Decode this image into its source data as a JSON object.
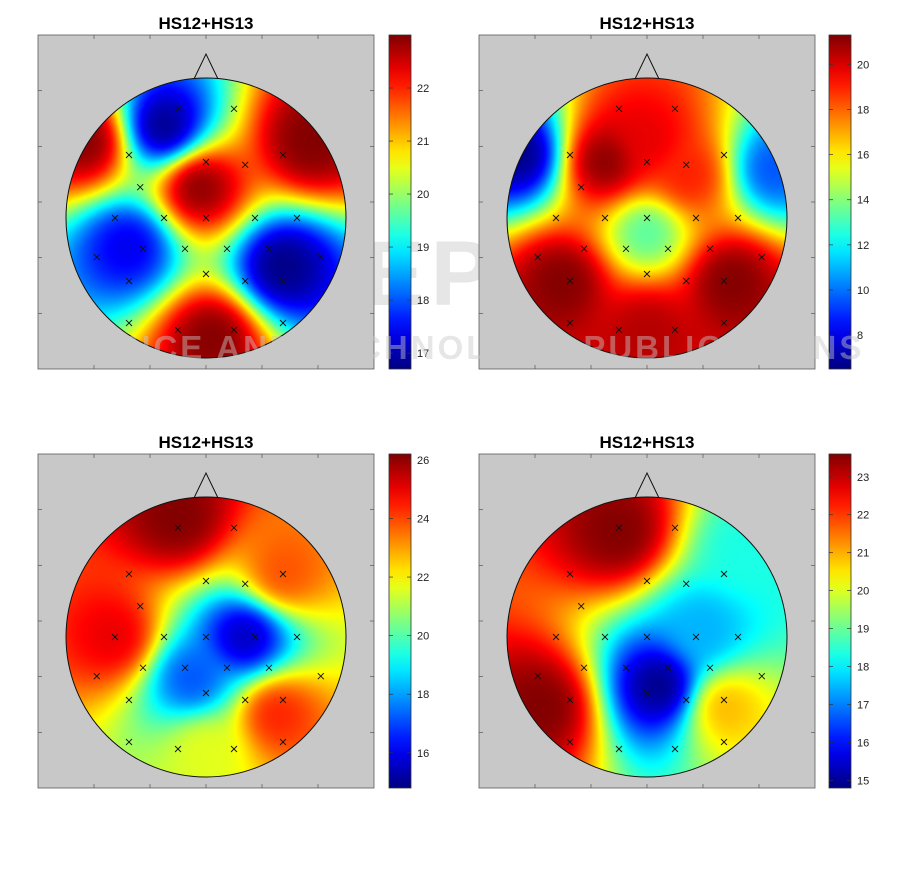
{
  "chart_data": [
    {
      "type": "heatmap",
      "title": "HS12+HS13",
      "colorbar": {
        "min": 16.7,
        "max": 23.0,
        "ticks": [
          17,
          18,
          19,
          20,
          21,
          22
        ]
      },
      "hotspots": [
        [
          -0.05,
          0.22,
          1
        ],
        [
          -0.85,
          0.55,
          1
        ],
        [
          0.75,
          0.55,
          1
        ],
        [
          0.05,
          -0.85,
          1
        ],
        [
          -0.3,
          0.65,
          0
        ],
        [
          0.55,
          -0.35,
          0
        ],
        [
          -0.55,
          -0.2,
          0.1
        ]
      ],
      "electrodes": [
        [
          -0.2,
          0.78
        ],
        [
          0.2,
          0.78
        ],
        [
          -0.55,
          0.45
        ],
        [
          -0.47,
          0.22
        ],
        [
          0.0,
          0.4
        ],
        [
          0.28,
          0.38
        ],
        [
          0.55,
          0.45
        ],
        [
          -0.65,
          0.0
        ],
        [
          -0.3,
          0.0
        ],
        [
          0.0,
          0.0
        ],
        [
          0.35,
          0.0
        ],
        [
          0.65,
          0.0
        ],
        [
          -0.45,
          -0.22
        ],
        [
          -0.15,
          -0.22
        ],
        [
          0.15,
          -0.22
        ],
        [
          0.45,
          -0.22
        ],
        [
          -0.78,
          -0.28
        ],
        [
          -0.55,
          -0.45
        ],
        [
          0.0,
          -0.4
        ],
        [
          0.28,
          -0.45
        ],
        [
          0.55,
          -0.45
        ],
        [
          0.82,
          -0.28
        ],
        [
          -0.55,
          -0.75
        ],
        [
          -0.2,
          -0.8
        ],
        [
          0.2,
          -0.8
        ],
        [
          0.55,
          -0.75
        ]
      ]
    },
    {
      "type": "heatmap",
      "title": "HS12+HS13",
      "colorbar": {
        "min": 6.5,
        "max": 21.3,
        "ticks": [
          8,
          10,
          12,
          14,
          16,
          18,
          20
        ]
      },
      "hotspots": [
        [
          0.0,
          0.55,
          0.9
        ],
        [
          -0.3,
          0.4,
          1
        ],
        [
          0.3,
          0.3,
          0.85
        ],
        [
          -0.6,
          -0.45,
          1
        ],
        [
          0.6,
          -0.45,
          1
        ],
        [
          0.0,
          -0.8,
          0.95
        ],
        [
          -0.9,
          0.45,
          0
        ],
        [
          0.9,
          0.35,
          0.2
        ],
        [
          0.0,
          -0.1,
          0.45
        ]
      ],
      "electrodes": [
        [
          -0.2,
          0.78
        ],
        [
          0.2,
          0.78
        ],
        [
          -0.55,
          0.45
        ],
        [
          -0.47,
          0.22
        ],
        [
          0.0,
          0.4
        ],
        [
          0.28,
          0.38
        ],
        [
          0.55,
          0.45
        ],
        [
          -0.65,
          0.0
        ],
        [
          -0.3,
          0.0
        ],
        [
          0.0,
          0.0
        ],
        [
          0.35,
          0.0
        ],
        [
          0.65,
          0.0
        ],
        [
          -0.45,
          -0.22
        ],
        [
          -0.15,
          -0.22
        ],
        [
          0.15,
          -0.22
        ],
        [
          0.45,
          -0.22
        ],
        [
          -0.78,
          -0.28
        ],
        [
          -0.55,
          -0.45
        ],
        [
          0.0,
          -0.4
        ],
        [
          0.28,
          -0.45
        ],
        [
          0.55,
          -0.45
        ],
        [
          0.82,
          -0.28
        ],
        [
          -0.55,
          -0.75
        ],
        [
          -0.2,
          -0.8
        ],
        [
          0.2,
          -0.8
        ],
        [
          0.55,
          -0.75
        ]
      ]
    },
    {
      "type": "heatmap",
      "title": "HS12+HS13",
      "colorbar": {
        "min": 14.8,
        "max": 26.2,
        "ticks": [
          16,
          18,
          20,
          22,
          24,
          26
        ]
      },
      "hotspots": [
        [
          -0.2,
          0.85,
          1
        ],
        [
          0.55,
          0.45,
          0.8
        ],
        [
          -0.65,
          0.0,
          0.9
        ],
        [
          0.5,
          -0.55,
          0.85
        ],
        [
          0.28,
          0.0,
          0.05
        ],
        [
          -0.1,
          -0.3,
          0.2
        ],
        [
          0.0,
          -0.8,
          0.6
        ]
      ],
      "electrodes": [
        [
          -0.2,
          0.78
        ],
        [
          0.2,
          0.78
        ],
        [
          -0.55,
          0.45
        ],
        [
          -0.47,
          0.22
        ],
        [
          0.0,
          0.4
        ],
        [
          0.28,
          0.38
        ],
        [
          0.55,
          0.45
        ],
        [
          -0.65,
          0.0
        ],
        [
          -0.3,
          0.0
        ],
        [
          0.0,
          0.0
        ],
        [
          0.35,
          0.0
        ],
        [
          0.65,
          0.0
        ],
        [
          -0.45,
          -0.22
        ],
        [
          -0.15,
          -0.22
        ],
        [
          0.15,
          -0.22
        ],
        [
          0.45,
          -0.22
        ],
        [
          -0.78,
          -0.28
        ],
        [
          -0.55,
          -0.45
        ],
        [
          0.0,
          -0.4
        ],
        [
          0.28,
          -0.45
        ],
        [
          0.55,
          -0.45
        ],
        [
          0.82,
          -0.28
        ],
        [
          -0.55,
          -0.75
        ],
        [
          -0.2,
          -0.8
        ],
        [
          0.2,
          -0.8
        ],
        [
          0.55,
          -0.75
        ]
      ]
    },
    {
      "type": "heatmap",
      "title": "HS12+HS13",
      "colorbar": {
        "min": 14.8,
        "max": 23.6,
        "ticks": [
          15,
          16,
          17,
          18,
          19,
          20,
          21,
          22,
          23
        ]
      },
      "hotspots": [
        [
          -0.2,
          0.75,
          1
        ],
        [
          -0.75,
          -0.5,
          1
        ],
        [
          0.55,
          -0.5,
          0.7
        ],
        [
          0.1,
          -0.35,
          0.0
        ],
        [
          0.4,
          0.05,
          0.3
        ],
        [
          0.7,
          0.6,
          0.4
        ]
      ],
      "electrodes": [
        [
          -0.2,
          0.78
        ],
        [
          0.2,
          0.78
        ],
        [
          -0.55,
          0.45
        ],
        [
          -0.47,
          0.22
        ],
        [
          0.0,
          0.4
        ],
        [
          0.28,
          0.38
        ],
        [
          0.55,
          0.45
        ],
        [
          -0.65,
          0.0
        ],
        [
          -0.3,
          0.0
        ],
        [
          0.0,
          0.0
        ],
        [
          0.35,
          0.0
        ],
        [
          0.65,
          0.0
        ],
        [
          -0.45,
          -0.22
        ],
        [
          -0.15,
          -0.22
        ],
        [
          0.15,
          -0.22
        ],
        [
          0.45,
          -0.22
        ],
        [
          -0.78,
          -0.28
        ],
        [
          -0.55,
          -0.45
        ],
        [
          0.0,
          -0.4
        ],
        [
          0.28,
          -0.45
        ],
        [
          0.55,
          -0.45
        ],
        [
          0.82,
          -0.28
        ],
        [
          -0.55,
          -0.75
        ],
        [
          -0.2,
          -0.8
        ],
        [
          0.2,
          -0.8
        ],
        [
          0.55,
          -0.75
        ]
      ]
    }
  ],
  "watermark": {
    "line1": "SCITEPRESS",
    "line2": "SCIENCE AND TECHNOLOGY PUBLICATIONS"
  }
}
